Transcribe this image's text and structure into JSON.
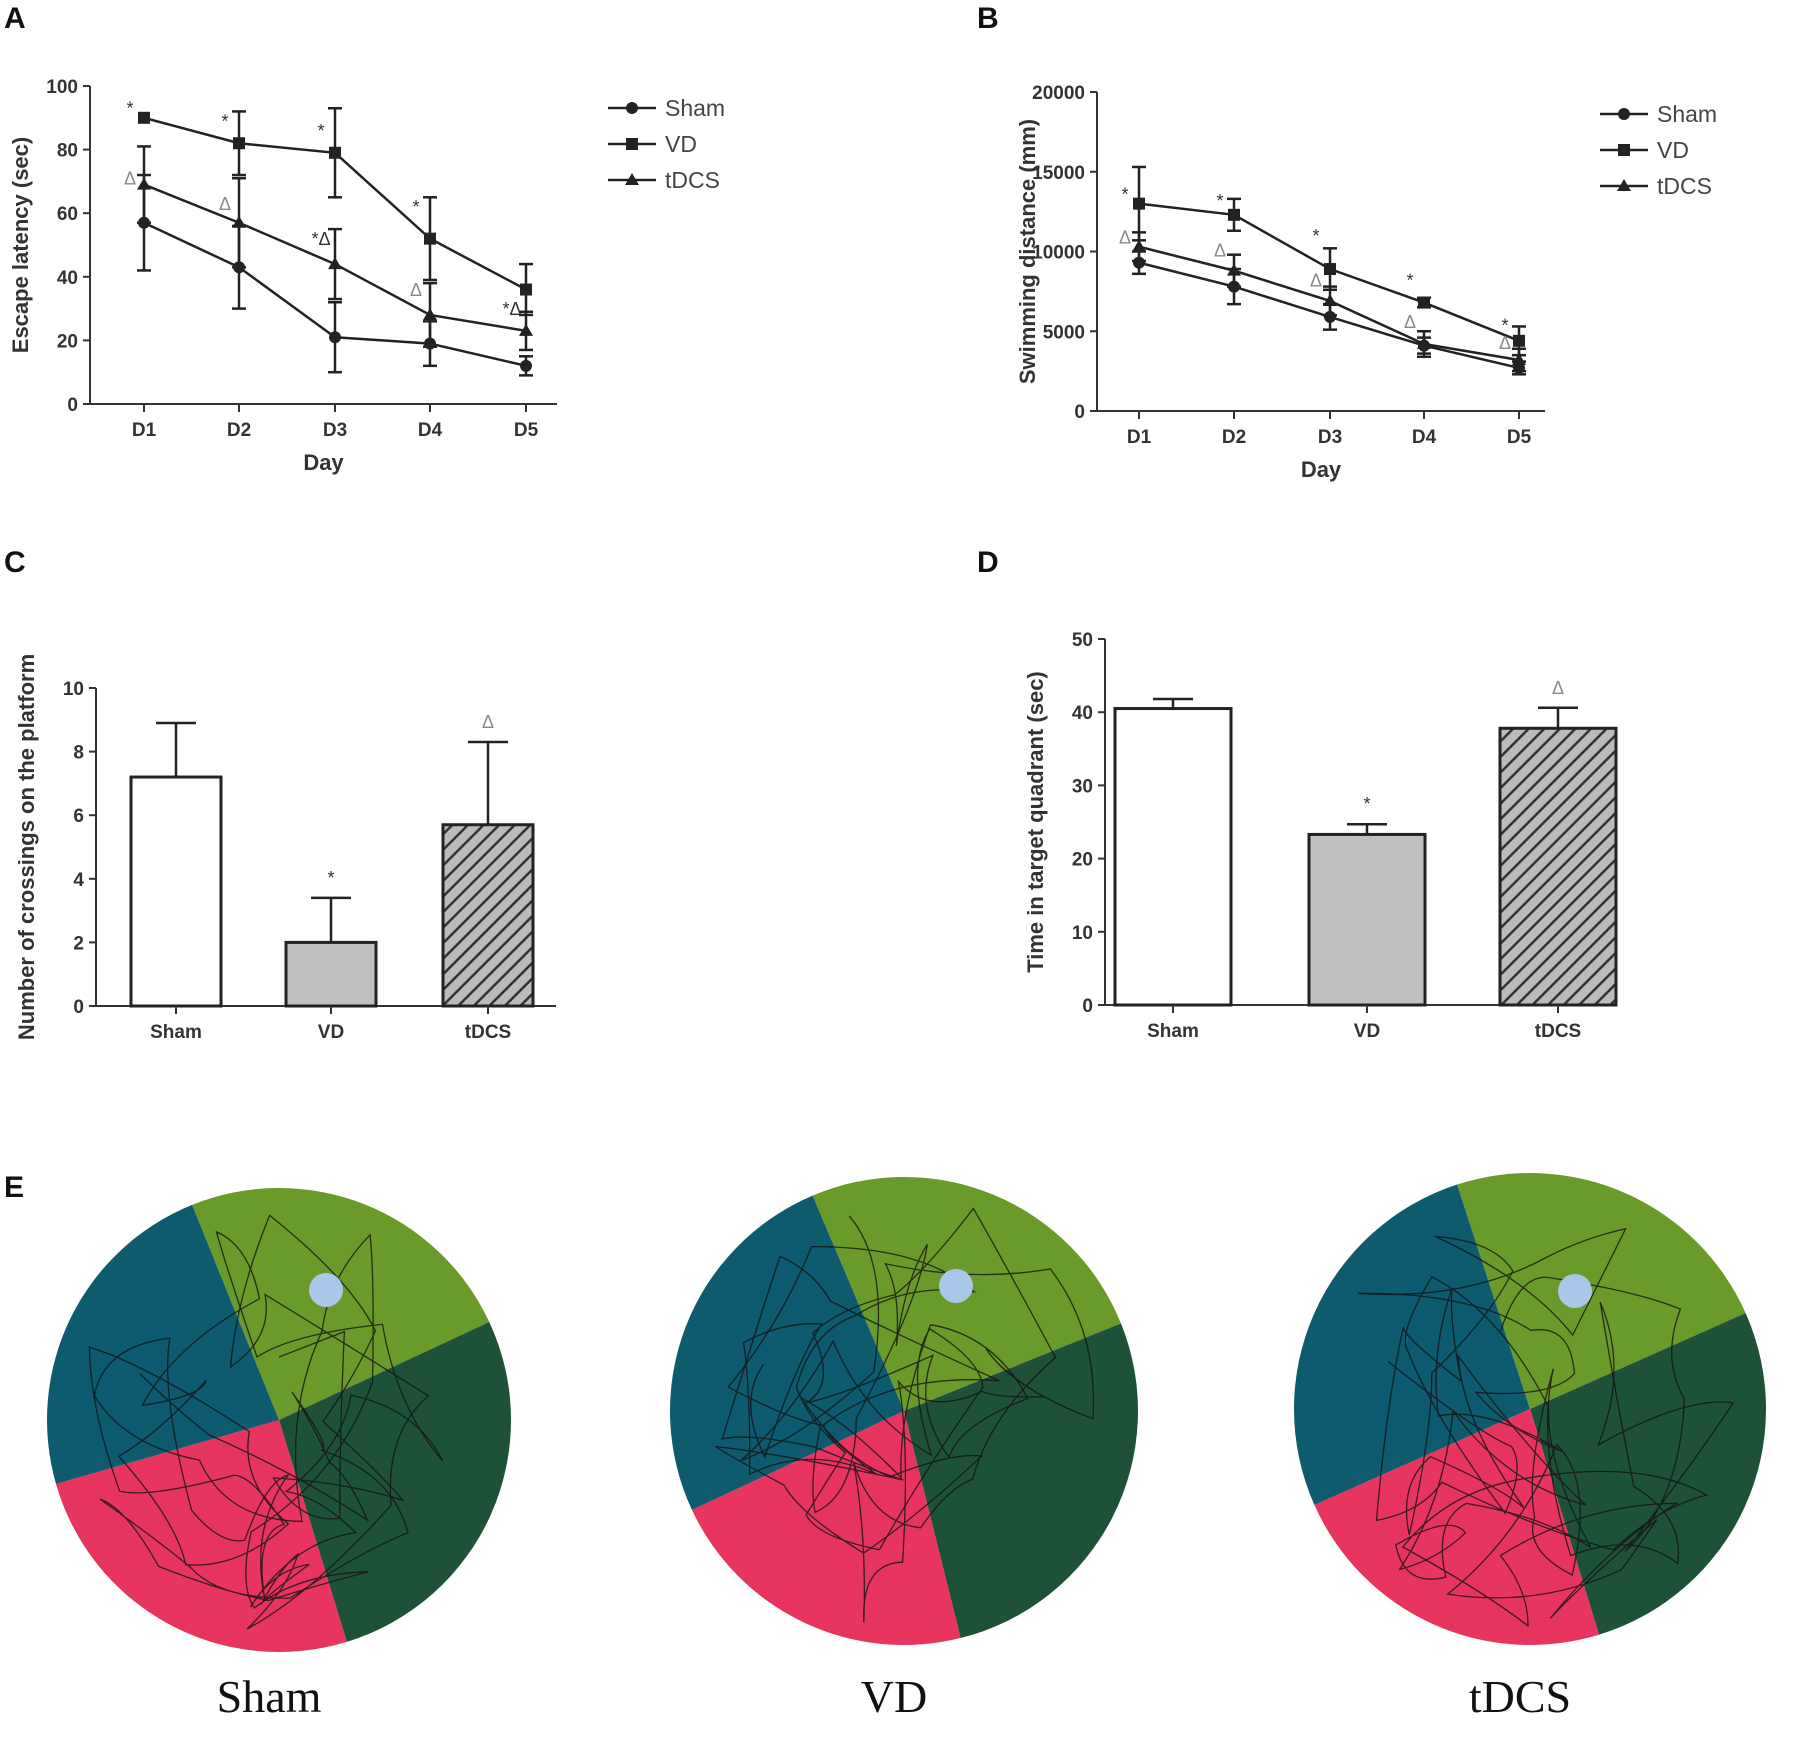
{
  "panels": {
    "A": "A",
    "B": "B",
    "C": "C",
    "D": "D",
    "E": "E"
  },
  "colors": {
    "axis": "#333333",
    "line": "#222222",
    "bar_sham": "#ffffff",
    "bar_vd": "#c0c0c0",
    "bar_tdcs": "#bbbbbb",
    "q_blue": "#0e5a6e",
    "q_green": "#6a9a2a",
    "q_dark": "#1d5238",
    "q_pink": "#e83560",
    "platform": "#a9c7e8"
  },
  "chart_data": [
    {
      "id": "A",
      "type": "line",
      "xlabel": "Day",
      "ylabel": "Escape latency (sec)",
      "categories": [
        "D1",
        "D2",
        "D3",
        "D4",
        "D5"
      ],
      "ylim": [
        0,
        100
      ],
      "yticks": [
        "0",
        "20",
        "40",
        "60",
        "80",
        "100"
      ],
      "series": [
        {
          "name": "Sham",
          "marker": "circle",
          "values": [
            57,
            43,
            21,
            19,
            12
          ],
          "errors": [
            15,
            13,
            11,
            7,
            3
          ]
        },
        {
          "name": "VD",
          "marker": "square",
          "values": [
            90,
            82,
            79,
            52,
            36
          ],
          "errors": [
            0,
            10,
            14,
            13,
            8
          ]
        },
        {
          "name": "tDCS",
          "marker": "triangle",
          "values": [
            69,
            57,
            44,
            28,
            23
          ],
          "errors": [
            12,
            14,
            11,
            10,
            6
          ]
        }
      ],
      "annotations": [
        {
          "x": "D1",
          "y": 91,
          "text": "*"
        },
        {
          "x": "D1",
          "y": 69,
          "text": "Δ"
        },
        {
          "x": "D2",
          "y": 87,
          "text": "*"
        },
        {
          "x": "D2",
          "y": 61,
          "text": "Δ"
        },
        {
          "x": "D3",
          "y": 84,
          "text": "*"
        },
        {
          "x": "D3",
          "y": 50,
          "text": "*Δ"
        },
        {
          "x": "D4",
          "y": 60,
          "text": "*"
        },
        {
          "x": "D4",
          "y": 34,
          "text": "Δ"
        },
        {
          "x": "D5",
          "y": 28,
          "text": "*Δ"
        }
      ]
    },
    {
      "id": "B",
      "type": "line",
      "xlabel": "Day",
      "ylabel": "Swimming distance (mm)",
      "categories": [
        "D1",
        "D2",
        "D3",
        "D4",
        "D5"
      ],
      "ylim": [
        0,
        20000
      ],
      "yticks": [
        "0",
        "5000",
        "10000",
        "15000",
        "20000"
      ],
      "series": [
        {
          "name": "Sham",
          "marker": "circle",
          "values": [
            9300,
            7800,
            5900,
            4100,
            2700
          ],
          "errors": [
            700,
            1100,
            800,
            500,
            400
          ]
        },
        {
          "name": "VD",
          "marker": "square",
          "values": [
            13000,
            12300,
            8900,
            6800,
            4400
          ],
          "errors": [
            2300,
            1000,
            1300,
            300,
            900
          ]
        },
        {
          "name": "tDCS",
          "marker": "triangle",
          "values": [
            10300,
            8800,
            6900,
            4200,
            3200
          ],
          "errors": [
            900,
            1000,
            900,
            800,
            700
          ]
        }
      ],
      "annotations": [
        {
          "x": "D1",
          "y": 13200,
          "text": "*"
        },
        {
          "x": "D1",
          "y": 10500,
          "text": "Δ"
        },
        {
          "x": "D2",
          "y": 12800,
          "text": "*"
        },
        {
          "x": "D2",
          "y": 9700,
          "text": "Δ"
        },
        {
          "x": "D3",
          "y": 10600,
          "text": "*"
        },
        {
          "x": "D3",
          "y": 7800,
          "text": "Δ"
        },
        {
          "x": "D4",
          "y": 7800,
          "text": "*"
        },
        {
          "x": "D4",
          "y": 5200,
          "text": "Δ"
        },
        {
          "x": "D5",
          "y": 5000,
          "text": "*"
        },
        {
          "x": "D5",
          "y": 3900,
          "text": "Δ"
        }
      ]
    },
    {
      "id": "C",
      "type": "bar",
      "ylabel": "Number of crossings on the platform",
      "categories": [
        "Sham",
        "VD",
        "tDCS"
      ],
      "values": [
        7.2,
        2.0,
        5.7
      ],
      "errors": [
        1.7,
        1.4,
        2.6
      ],
      "ylim": [
        0,
        10
      ],
      "yticks": [
        "0",
        "2",
        "4",
        "6",
        "8",
        "10"
      ],
      "annotations": [
        "",
        "*",
        "Δ"
      ]
    },
    {
      "id": "D",
      "type": "bar",
      "ylabel": "Time in target quadrant (sec)",
      "categories": [
        "Sham",
        "VD",
        "tDCS"
      ],
      "values": [
        40.5,
        23.3,
        37.8
      ],
      "errors": [
        1.3,
        1.4,
        2.8
      ],
      "ylim": [
        0,
        50
      ],
      "yticks": [
        "0",
        "10",
        "20",
        "30",
        "40",
        "50"
      ],
      "annotations": [
        "",
        "*",
        "Δ"
      ]
    }
  ],
  "mazes": [
    {
      "label": "Sham",
      "boundaries_deg": [
        -112,
        -25,
        73,
        164
      ]
    },
    {
      "label": "VD",
      "boundaries_deg": [
        -113,
        -22,
        76,
        155
      ]
    },
    {
      "label": "tDCS",
      "boundaries_deg": [
        -108,
        -24,
        73,
        156
      ]
    }
  ]
}
